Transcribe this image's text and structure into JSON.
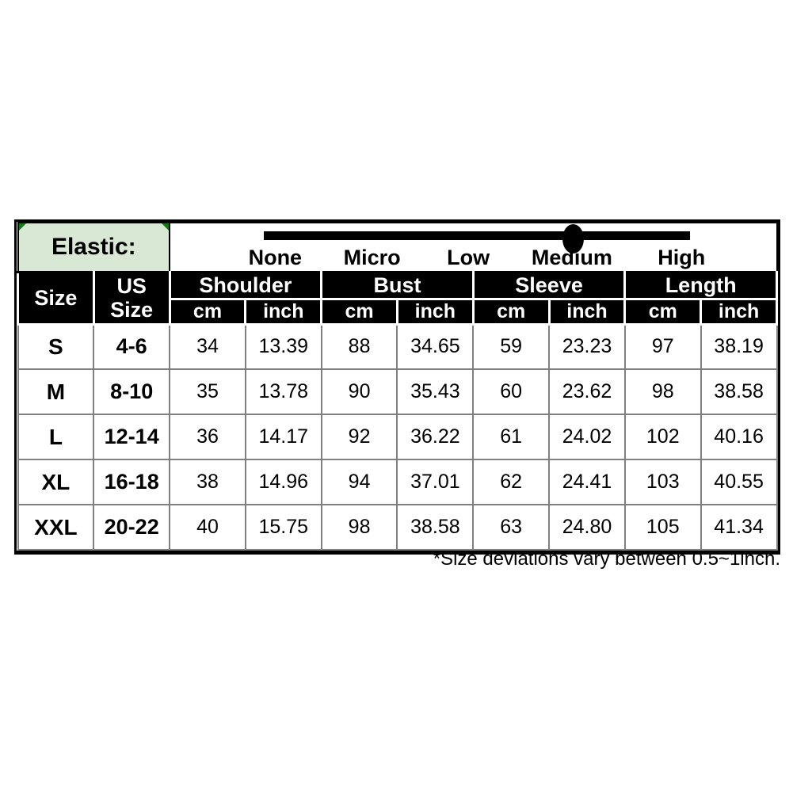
{
  "elastic": {
    "label": "Elastic:",
    "levels": [
      "None",
      "Micro",
      "Low",
      "Medium",
      "High"
    ],
    "selected": "Medium",
    "level_positions_pct": [
      17.3,
      33.3,
      49.2,
      66.3,
      84.4
    ],
    "dot_position_pct": 66.5
  },
  "table": {
    "corner_header": "Size",
    "us_size_header": "US\nSize",
    "groups": [
      {
        "label": "Shoulder"
      },
      {
        "label": "Bust"
      },
      {
        "label": "Sleeve"
      },
      {
        "label": "Length"
      }
    ],
    "unit_cm": "cm",
    "unit_inch": "inch",
    "column_keys": [
      "size",
      "us_size",
      "shoulder_cm",
      "shoulder_inch",
      "bust_cm",
      "bust_inch",
      "sleeve_cm",
      "sleeve_inch",
      "length_cm",
      "length_inch"
    ],
    "rows": [
      {
        "cells": [
          "S",
          "4-6",
          "34",
          "13.39",
          "88",
          "34.65",
          "59",
          "23.23",
          "97",
          "38.19"
        ]
      },
      {
        "cells": [
          "M",
          "8-10",
          "35",
          "13.78",
          "90",
          "35.43",
          "60",
          "23.62",
          "98",
          "38.58"
        ]
      },
      {
        "cells": [
          "L",
          "12-14",
          "36",
          "14.17",
          "92",
          "36.22",
          "61",
          "24.02",
          "102",
          "40.16"
        ]
      },
      {
        "cells": [
          "XL",
          "16-18",
          "38",
          "14.96",
          "94",
          "37.01",
          "62",
          "24.41",
          "103",
          "40.55"
        ]
      },
      {
        "cells": [
          "XXL",
          "20-22",
          "40",
          "15.75",
          "98",
          "38.58",
          "63",
          "24.80",
          "105",
          "41.34"
        ]
      }
    ]
  },
  "footnote": "*Size deviations vary between 0.5~1inch.",
  "colors": {
    "elastic_cell_bg": "#d9e8d4",
    "header_bg": "#000000",
    "header_text": "#ffffff",
    "data_border": "#808080",
    "corner_marker_green": "#157615",
    "slider_bar": "#000000"
  }
}
